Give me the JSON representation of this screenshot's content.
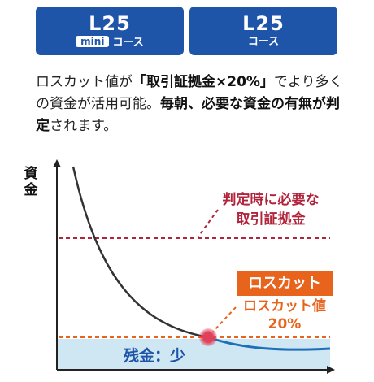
{
  "course_buttons": [
    {
      "code": "L25",
      "badge": "mini",
      "sub": "コース"
    },
    {
      "code": "L25",
      "sub": "コース"
    }
  ],
  "description": {
    "p1": "ロスカット値が",
    "p2_bold": "「取引証拠金×20%」",
    "p3": "でより多くの資金が活用可能。",
    "p4_bold": "毎朝、必要な資金の有無が判定",
    "p5": "されます。"
  },
  "diagram": {
    "y_axis_title": "資金",
    "required_label_line1": "判定時に必要な",
    "required_label_line2": "取引証拠金",
    "losscut_box_label": "ロスカット",
    "losscut_value_line1": "ロスカット値",
    "losscut_value_line2": "20%",
    "remaining_label": "残金：少",
    "colors": {
      "required_line": "#b0243c",
      "losscut": "#e8641d",
      "curve_dark": "#333333",
      "curve_blue": "#1f6fb8",
      "remaining_fill": "#cfe6f3",
      "point": "#e0405a"
    }
  }
}
